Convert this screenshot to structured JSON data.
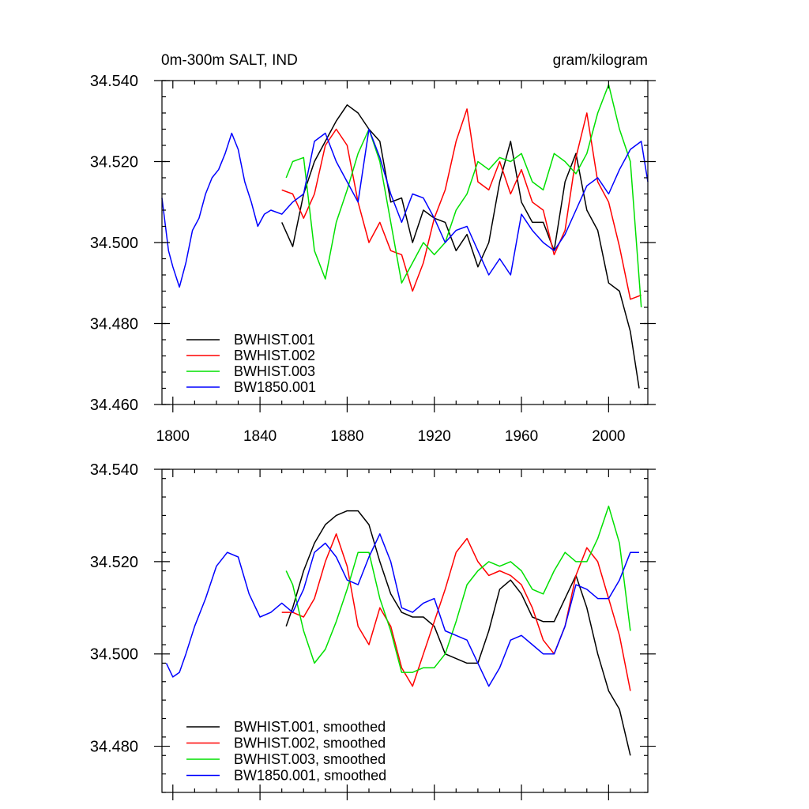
{
  "chart_data": [
    {
      "type": "line",
      "title": "0m-300m SALT, IND",
      "units": "gram/kilogram",
      "xlim": [
        1795,
        2018
      ],
      "ylim": [
        34.46,
        34.54
      ],
      "x_ticks": [
        "1800",
        "1840",
        "1880",
        "1920",
        "1960",
        "2000"
      ],
      "y_ticks": [
        "34.460",
        "34.480",
        "34.500",
        "34.520",
        "34.540"
      ],
      "legend": "bottom-left",
      "series": [
        {
          "name": "BWHIST.001",
          "color": "#000000",
          "x": [
            1850,
            1855,
            1860,
            1865,
            1870,
            1875,
            1880,
            1885,
            1890,
            1895,
            1900,
            1905,
            1910,
            1915,
            1920,
            1925,
            1930,
            1935,
            1940,
            1945,
            1950,
            1955,
            1960,
            1965,
            1970,
            1975,
            1980,
            1985,
            1990,
            1995,
            2000,
            2005,
            2010,
            2014
          ],
          "y": [
            34.505,
            34.499,
            34.512,
            34.52,
            34.525,
            34.53,
            34.534,
            34.532,
            34.528,
            34.525,
            34.51,
            34.511,
            34.5,
            34.508,
            34.506,
            34.505,
            34.498,
            34.502,
            34.494,
            34.5,
            34.515,
            34.525,
            34.51,
            34.505,
            34.505,
            34.498,
            34.515,
            34.522,
            34.508,
            34.503,
            34.49,
            34.488,
            34.478,
            34.464
          ]
        },
        {
          "name": "BWHIST.002",
          "color": "#ff0000",
          "x": [
            1850,
            1855,
            1860,
            1865,
            1870,
            1875,
            1880,
            1885,
            1890,
            1895,
            1900,
            1905,
            1910,
            1915,
            1920,
            1925,
            1930,
            1935,
            1940,
            1945,
            1950,
            1955,
            1960,
            1965,
            1970,
            1975,
            1980,
            1985,
            1990,
            1995,
            2000,
            2005,
            2010,
            2015
          ],
          "y": [
            34.513,
            34.512,
            34.506,
            34.512,
            34.524,
            34.528,
            34.524,
            34.51,
            34.5,
            34.505,
            34.498,
            34.497,
            34.488,
            34.495,
            34.506,
            34.513,
            34.525,
            34.533,
            34.515,
            34.513,
            34.52,
            34.512,
            34.518,
            34.51,
            34.508,
            34.497,
            34.503,
            34.521,
            34.532,
            34.515,
            34.51,
            34.499,
            34.486,
            34.487
          ]
        },
        {
          "name": "BWHIST.003",
          "color": "#00e000",
          "x": [
            1852,
            1855,
            1860,
            1865,
            1870,
            1875,
            1880,
            1885,
            1890,
            1895,
            1900,
            1905,
            1910,
            1915,
            1920,
            1925,
            1930,
            1935,
            1940,
            1945,
            1950,
            1955,
            1960,
            1965,
            1970,
            1975,
            1980,
            1985,
            1990,
            1995,
            2000,
            2005,
            2010,
            2015
          ],
          "y": [
            34.516,
            34.52,
            34.521,
            34.498,
            34.491,
            34.505,
            34.513,
            34.522,
            34.528,
            34.52,
            34.505,
            34.49,
            34.495,
            34.5,
            34.497,
            34.5,
            34.508,
            34.512,
            34.52,
            34.518,
            34.521,
            34.52,
            34.522,
            34.515,
            34.513,
            34.522,
            34.52,
            34.517,
            34.522,
            34.532,
            34.539,
            34.528,
            34.52,
            34.484
          ]
        },
        {
          "name": "BW1850.001",
          "color": "#0000ff",
          "x": [
            1795,
            1798,
            1800,
            1803,
            1806,
            1809,
            1812,
            1815,
            1818,
            1821,
            1824,
            1827,
            1830,
            1833,
            1836,
            1839,
            1842,
            1845,
            1850,
            1855,
            1860,
            1865,
            1870,
            1875,
            1880,
            1885,
            1890,
            1895,
            1900,
            1905,
            1910,
            1915,
            1920,
            1925,
            1930,
            1935,
            1940,
            1945,
            1950,
            1955,
            1960,
            1965,
            1970,
            1975,
            1980,
            1985,
            1990,
            1995,
            2000,
            2005,
            2010,
            2015,
            2018
          ],
          "y": [
            34.511,
            34.498,
            34.494,
            34.489,
            34.495,
            34.503,
            34.506,
            34.512,
            34.516,
            34.518,
            34.522,
            34.527,
            34.523,
            34.515,
            34.51,
            34.504,
            34.507,
            34.508,
            34.507,
            34.51,
            34.512,
            34.525,
            34.527,
            34.52,
            34.515,
            34.51,
            34.528,
            34.521,
            34.512,
            34.505,
            34.512,
            34.511,
            34.506,
            34.5,
            34.503,
            34.504,
            34.498,
            34.492,
            34.496,
            34.492,
            34.507,
            34.503,
            34.5,
            34.498,
            34.502,
            34.508,
            34.514,
            34.516,
            34.512,
            34.518,
            34.523,
            34.525,
            34.515
          ]
        }
      ]
    },
    {
      "type": "line",
      "xlim": [
        1795,
        2018
      ],
      "ylim": [
        34.47,
        34.54
      ],
      "y_ticks": [
        "34.480",
        "34.500",
        "34.520",
        "34.540"
      ],
      "legend": "bottom-left",
      "series": [
        {
          "name": "BWHIST.001, smoothed",
          "color": "#000000",
          "x": [
            1852,
            1855,
            1860,
            1865,
            1870,
            1875,
            1880,
            1885,
            1890,
            1895,
            1900,
            1905,
            1910,
            1915,
            1920,
            1925,
            1930,
            1935,
            1940,
            1945,
            1950,
            1955,
            1960,
            1965,
            1970,
            1975,
            1980,
            1985,
            1990,
            1995,
            2000,
            2005,
            2010
          ],
          "y": [
            34.506,
            34.51,
            34.518,
            34.524,
            34.528,
            34.53,
            34.531,
            34.531,
            34.528,
            34.52,
            34.513,
            34.509,
            34.508,
            34.508,
            34.506,
            34.5,
            34.499,
            34.498,
            34.498,
            34.505,
            34.514,
            34.516,
            34.513,
            34.508,
            34.507,
            34.507,
            34.512,
            34.517,
            34.51,
            34.5,
            34.492,
            34.488,
            34.478
          ]
        },
        {
          "name": "BWHIST.002, smoothed",
          "color": "#ff0000",
          "x": [
            1850,
            1855,
            1860,
            1865,
            1870,
            1875,
            1880,
            1885,
            1890,
            1895,
            1900,
            1905,
            1910,
            1915,
            1920,
            1925,
            1930,
            1935,
            1940,
            1945,
            1950,
            1955,
            1960,
            1965,
            1970,
            1975,
            1980,
            1985,
            1990,
            1995,
            2000,
            2005,
            2010
          ],
          "y": [
            34.509,
            34.509,
            34.508,
            34.512,
            34.52,
            34.526,
            34.519,
            34.506,
            34.502,
            34.51,
            34.506,
            34.497,
            34.493,
            34.5,
            34.507,
            34.514,
            34.522,
            34.525,
            34.52,
            34.517,
            34.518,
            34.517,
            34.515,
            34.51,
            34.503,
            34.5,
            34.506,
            34.517,
            34.523,
            34.52,
            34.512,
            34.504,
            34.492
          ]
        },
        {
          "name": "BWHIST.003, smoothed",
          "color": "#00e000",
          "x": [
            1852,
            1855,
            1860,
            1865,
            1870,
            1875,
            1880,
            1885,
            1890,
            1895,
            1900,
            1905,
            1910,
            1915,
            1920,
            1925,
            1930,
            1935,
            1940,
            1945,
            1950,
            1955,
            1960,
            1965,
            1970,
            1975,
            1980,
            1985,
            1990,
            1995,
            2000,
            2005,
            2010
          ],
          "y": [
            34.518,
            34.515,
            34.505,
            34.498,
            34.501,
            34.507,
            34.514,
            34.522,
            34.522,
            34.512,
            34.505,
            34.496,
            34.496,
            34.497,
            34.497,
            34.5,
            34.507,
            34.515,
            34.518,
            34.52,
            34.519,
            34.52,
            34.518,
            34.514,
            34.513,
            34.518,
            34.522,
            34.52,
            34.52,
            34.525,
            34.532,
            34.524,
            34.505
          ]
        },
        {
          "name": "BW1850.001, smoothed",
          "color": "#0000ff",
          "x": [
            1797,
            1800,
            1803,
            1806,
            1810,
            1815,
            1820,
            1825,
            1830,
            1835,
            1840,
            1845,
            1850,
            1855,
            1860,
            1865,
            1870,
            1875,
            1880,
            1885,
            1890,
            1895,
            1900,
            1905,
            1910,
            1915,
            1920,
            1925,
            1930,
            1935,
            1940,
            1945,
            1950,
            1955,
            1960,
            1965,
            1970,
            1975,
            1980,
            1985,
            1990,
            1995,
            2000,
            2005,
            2010,
            2014
          ],
          "y": [
            34.498,
            34.495,
            34.496,
            34.5,
            34.506,
            34.512,
            34.519,
            34.522,
            34.521,
            34.513,
            34.508,
            34.509,
            34.511,
            34.509,
            34.514,
            34.522,
            34.524,
            34.521,
            34.516,
            34.515,
            34.521,
            34.526,
            34.52,
            34.51,
            34.509,
            34.511,
            34.512,
            34.505,
            34.504,
            34.503,
            34.498,
            34.493,
            34.497,
            34.503,
            34.504,
            34.502,
            34.5,
            34.5,
            34.506,
            34.515,
            34.514,
            34.512,
            34.512,
            34.516,
            34.522,
            34.522
          ]
        }
      ]
    }
  ]
}
